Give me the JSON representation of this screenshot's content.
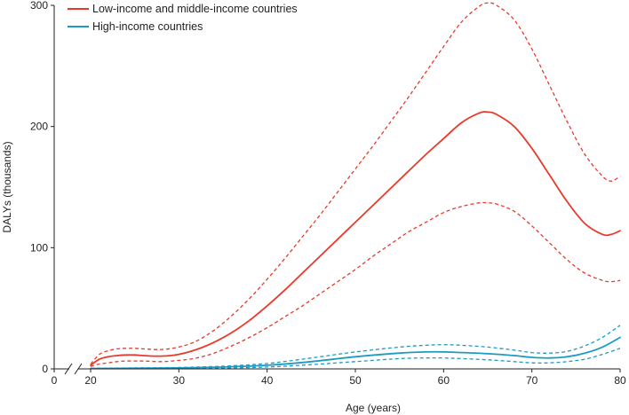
{
  "chart_data": {
    "type": "line",
    "title": "",
    "xlabel": "Age (years)",
    "ylabel": "DALYs (thousands)",
    "xlim": [
      0,
      80
    ],
    "ylim": [
      0,
      300
    ],
    "x_axis_break": [
      0,
      20
    ],
    "x_ticks": [
      0,
      20,
      30,
      40,
      50,
      60,
      70,
      80
    ],
    "y_ticks": [
      0,
      100,
      200,
      300
    ],
    "grid": false,
    "legend_position": "top-left",
    "series": [
      {
        "name": "Low-income and middle-income countries",
        "color": "#e8392b",
        "x": [
          20,
          21,
          22,
          23,
          24,
          25,
          26,
          28,
          30,
          32,
          34,
          36,
          38,
          40,
          42,
          44,
          46,
          48,
          50,
          52,
          54,
          56,
          58,
          60,
          62,
          64,
          65,
          66,
          68,
          70,
          72,
          74,
          76,
          78,
          79,
          80
        ],
        "values": [
          3,
          8,
          10,
          11,
          11.5,
          11.5,
          11,
          10.5,
          12,
          16,
          22,
          30,
          40,
          52,
          65,
          79,
          93,
          107,
          121,
          135,
          149,
          163,
          177,
          190,
          203,
          211,
          212,
          210,
          200,
          182,
          160,
          138,
          120,
          111,
          111,
          114
        ],
        "lower": [
          2,
          4,
          5,
          6,
          6.5,
          6.5,
          6.5,
          6,
          7,
          9,
          13,
          19,
          26,
          34,
          43,
          52,
          62,
          72,
          82,
          93,
          103,
          113,
          121,
          129,
          134,
          137,
          137,
          136,
          130,
          118,
          104,
          90,
          79,
          73,
          72,
          73
        ],
        "upper": [
          4,
          12,
          15,
          16.5,
          17,
          17,
          16.5,
          16,
          18,
          23,
          32,
          44,
          58,
          74,
          91,
          109,
          127,
          146,
          165,
          184,
          204,
          224,
          245,
          266,
          286,
          299,
          302,
          300,
          288,
          264,
          234,
          204,
          177,
          159,
          155,
          159
        ]
      },
      {
        "name": "High-income countries",
        "color": "#1d9bc4",
        "x": [
          20,
          25,
          30,
          35,
          40,
          45,
          50,
          55,
          58,
          60,
          62,
          65,
          68,
          70,
          72,
          74,
          76,
          78,
          80
        ],
        "values": [
          0.3,
          0.5,
          0.8,
          1.5,
          3,
          6,
          10,
          13,
          14,
          14,
          13.5,
          12.5,
          11,
          9.5,
          9,
          10,
          13,
          18,
          26
        ],
        "lower": [
          0.1,
          0.2,
          0.4,
          0.8,
          1.5,
          3.5,
          6,
          8.5,
          9,
          9,
          8.5,
          7.5,
          6,
          5,
          5,
          6,
          8,
          12,
          17
        ],
        "upper": [
          0.5,
          0.8,
          1.2,
          2.2,
          4.5,
          9,
          14,
          18,
          19.5,
          20,
          19.5,
          18,
          15.5,
          13.5,
          13,
          14.5,
          19,
          26,
          36
        ]
      }
    ]
  }
}
